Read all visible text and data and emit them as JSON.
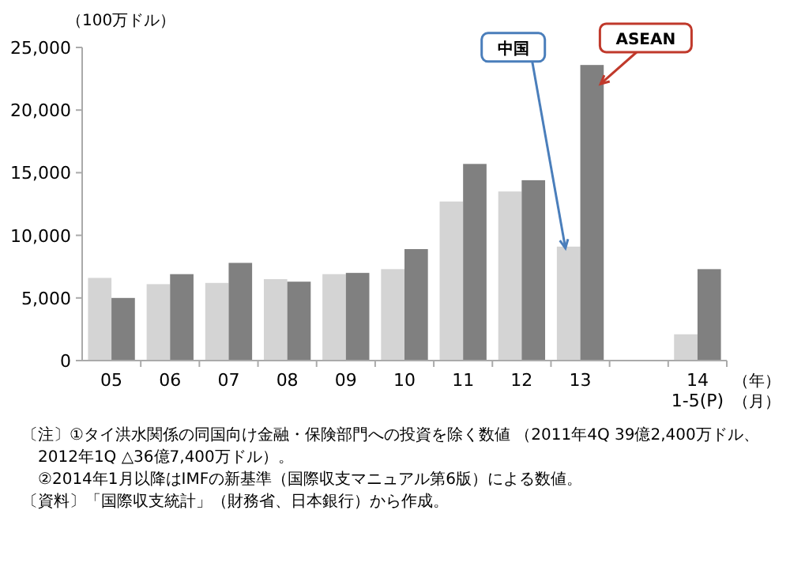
{
  "chart_data": {
    "type": "bar",
    "ylabel": "（100万ドル）",
    "xlabel": "（年）（月）",
    "categories": [
      "05",
      "06",
      "07",
      "08",
      "09",
      "10",
      "11",
      "12",
      "13",
      null,
      "14\n1-5(P)"
    ],
    "series": [
      {
        "name": "中国",
        "color": "#d4d4d4",
        "values": [
          6600,
          6100,
          6200,
          6500,
          6900,
          7300,
          12700,
          13500,
          9100,
          null,
          2100
        ]
      },
      {
        "name": "ASEAN",
        "color": "#808080",
        "values": [
          5000,
          6900,
          7800,
          6300,
          7000,
          8900,
          15700,
          14400,
          23600,
          null,
          7300
        ]
      }
    ],
    "ylim": [
      0,
      25000
    ],
    "yticks": [
      {
        "value": 0,
        "label": "0"
      },
      {
        "value": 5000,
        "label": "5,000"
      },
      {
        "value": 10000,
        "label": "10,000"
      },
      {
        "value": 15000,
        "label": "15,000"
      },
      {
        "value": 20000,
        "label": "20,000"
      },
      {
        "value": 25000,
        "label": "25,000"
      }
    ],
    "legend": false,
    "annotations": [
      "〔注〕①タイ洪水関係の同国向け金融・保険部門への投資を除く数値 （2011年4Q 39億2,400万ドル、2012年1Q △36億7,400万ドル）。",
      "②2014年1月以降はIMFの新基準（国際収支マニュアル第6版）による数値。",
      "〔資料〕「国際収支統計」（財務省、日本銀行）から作成。"
    ]
  }
}
